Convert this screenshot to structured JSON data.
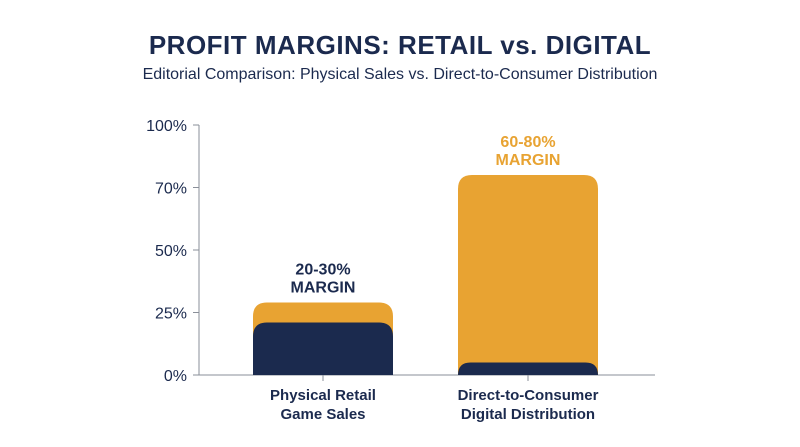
{
  "chart_data": {
    "type": "bar",
    "title": "PROFIT MARGINS: RETAIL vs. DIGITAL",
    "subtitle": "Editorial Comparison: Physical Sales vs. Direct-to-Consumer Distribution",
    "xlabel": "",
    "ylabel": "",
    "y_ticks": [
      {
        "value": 0,
        "label": "0%"
      },
      {
        "value": 25,
        "label": "25%"
      },
      {
        "value": 50,
        "label": "50%"
      },
      {
        "value": 70,
        "label": "70%"
      },
      {
        "value": 100,
        "label": "100%"
      }
    ],
    "ylim": [
      0,
      100
    ],
    "grid": false,
    "categories": [
      [
        "Physical Retail",
        "Game Sales"
      ],
      [
        "Direct-to-Consumer",
        "Digital Distribution"
      ]
    ],
    "bars": [
      {
        "category_index": 0,
        "top_value": 29,
        "inner_value": 21,
        "annotation": [
          "20-30%",
          "MARGIN"
        ],
        "annotation_color": "#1b2a4e"
      },
      {
        "category_index": 1,
        "top_value": 76,
        "inner_value": 5,
        "annotation": [
          "60-80%",
          "MARGIN"
        ],
        "annotation_color": "#e8a332"
      }
    ],
    "colors": {
      "outer": "#e8a332",
      "inner": "#1b2a4e",
      "axis": "#8a8f99",
      "text": "#1b2a4e"
    }
  }
}
